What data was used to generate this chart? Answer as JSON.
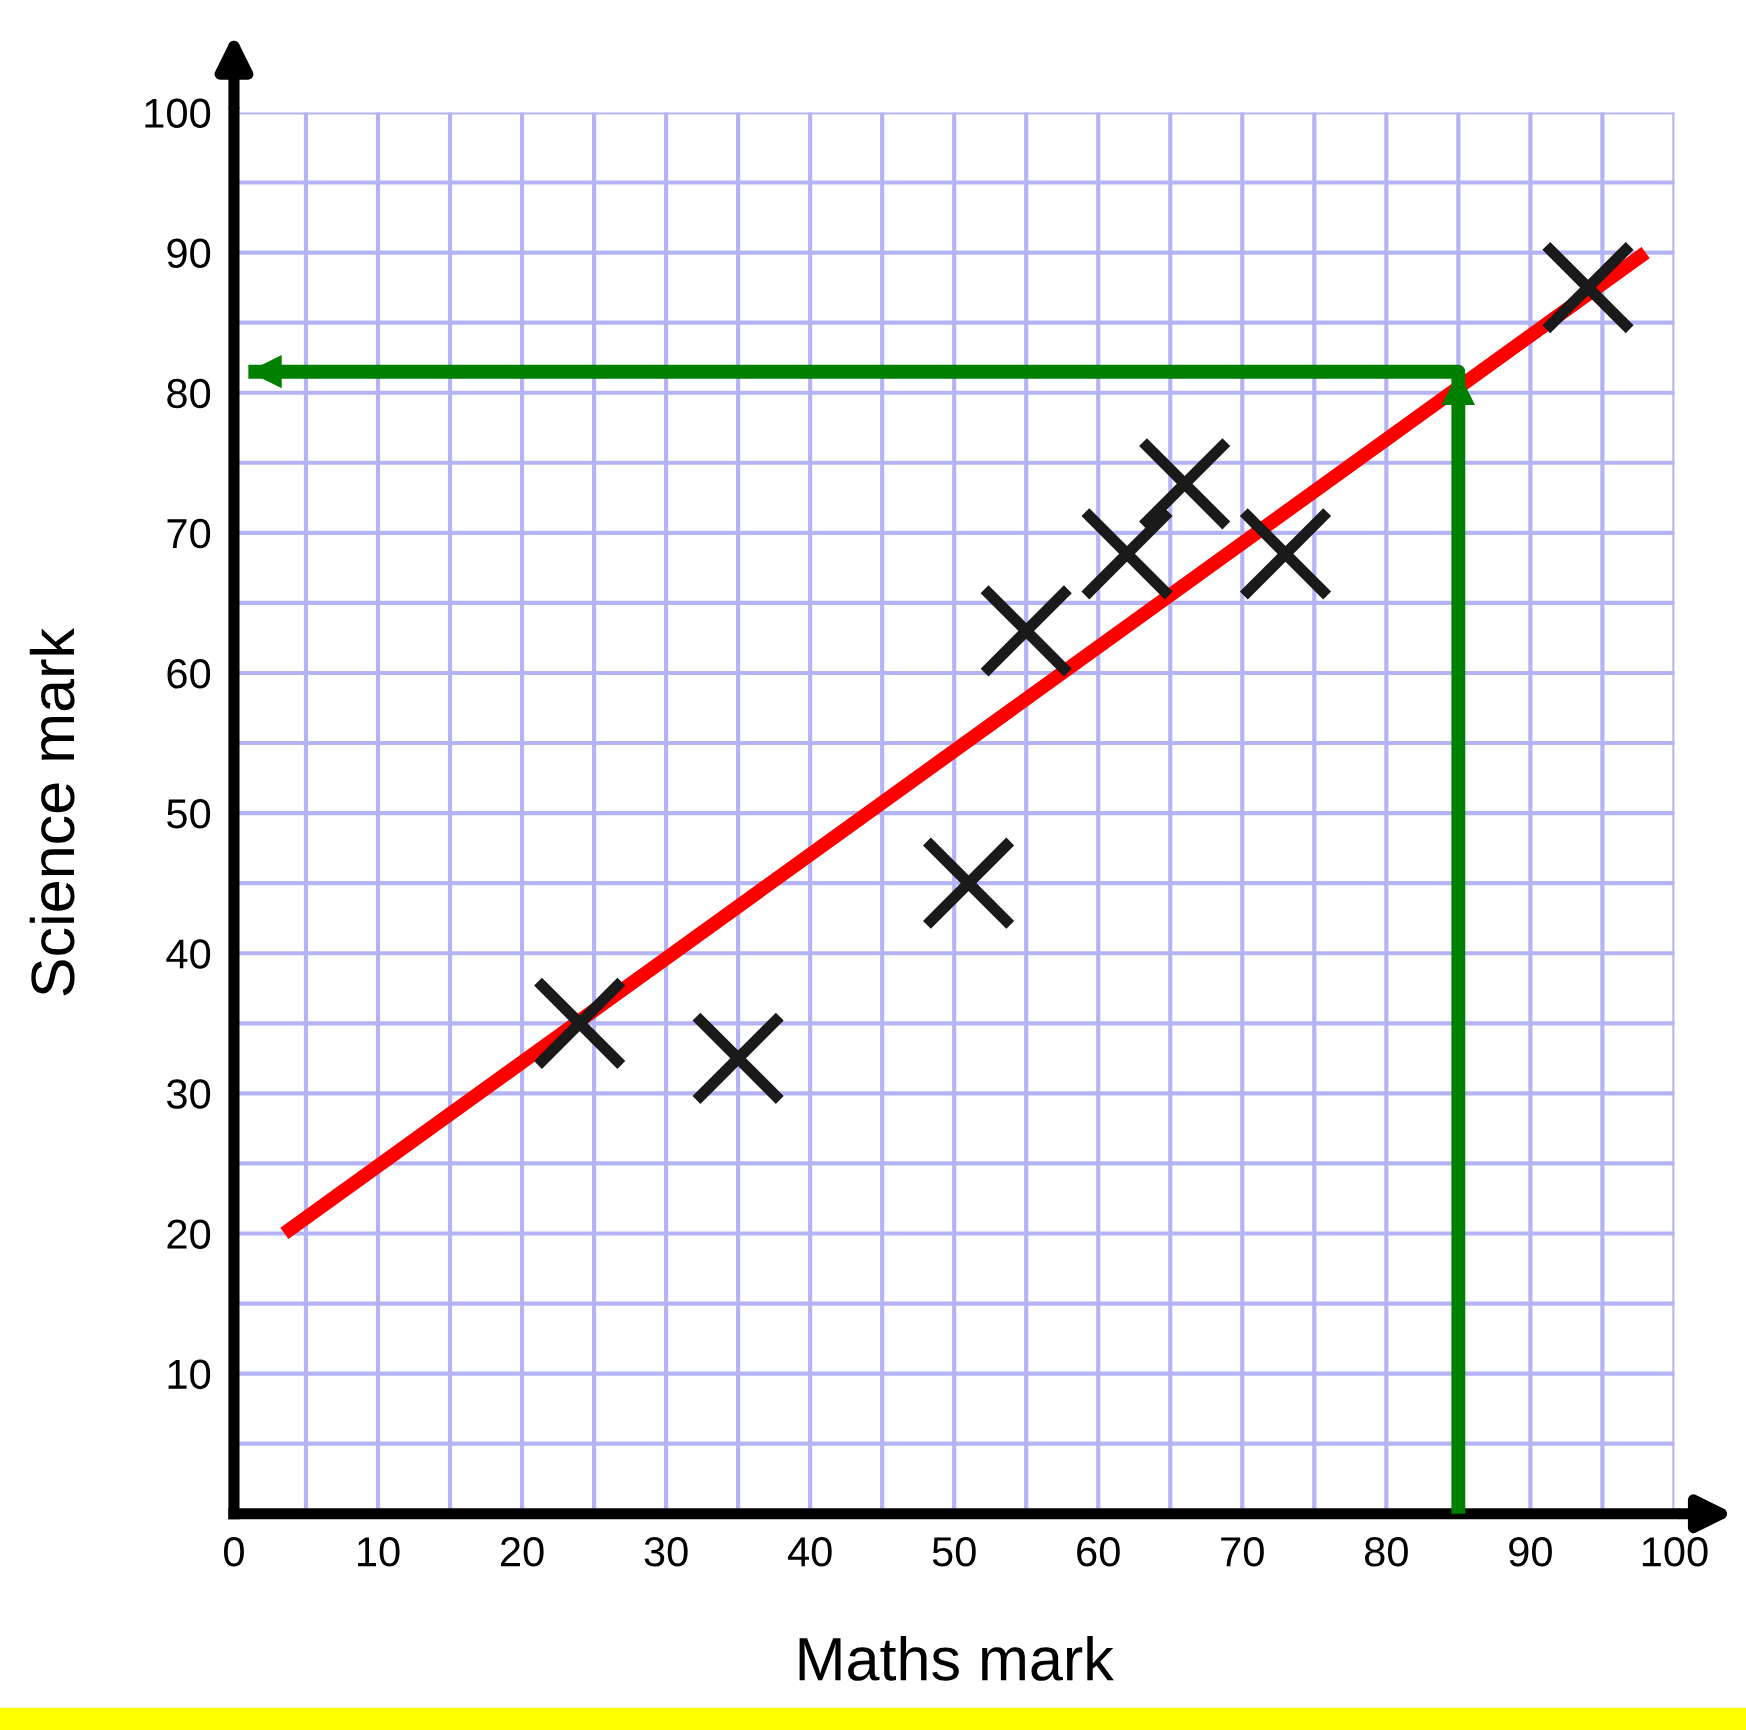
{
  "chart_data": {
    "type": "scatter",
    "xlabel": "Maths mark",
    "ylabel": "Science mark",
    "series": [
      {
        "color": "#1a1a1a",
        "marker": "cross",
        "x": [
          24,
          35,
          51,
          55,
          62,
          66,
          73,
          94
        ],
        "values": [
          35,
          32.5,
          45,
          63,
          68.5,
          73.5,
          68.5,
          87.5
        ]
      },
      {
        "type": "line",
        "color": "#ff0000",
        "marker": "none",
        "x": [
          3.5,
          98
        ],
        "values": [
          20,
          90
        ]
      },
      {
        "type": "line",
        "color": "#008000",
        "marker": "none",
        "x": [
          85,
          85,
          1
        ],
        "values": [
          0,
          81.5,
          81.5
        ]
      }
    ],
    "xlim": [
      0,
      100
    ],
    "ylim": [
      0,
      100
    ],
    "xticks": [
      0,
      10,
      20,
      30,
      40,
      50,
      60,
      70,
      80,
      90,
      100
    ],
    "yticks": [
      10,
      20,
      30,
      40,
      50,
      60,
      70,
      80,
      90,
      100
    ],
    "grid": true
  }
}
